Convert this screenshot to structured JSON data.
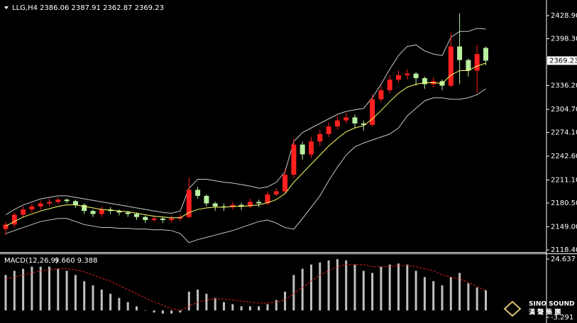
{
  "chart_data": [
    {
      "type": "candlestick",
      "title": "LLG,H4",
      "ohlc_text": "2386.06 2387.91 2362.87 2369.23",
      "open": [
        2146,
        2152,
        2165,
        2172,
        2176,
        2180,
        2182,
        2185,
        2183,
        2178,
        2170,
        2166,
        2172,
        2170,
        2168,
        2166,
        2162,
        2158,
        2160,
        2158,
        2160,
        2162,
        2198,
        2190,
        2180,
        2176,
        2175,
        2178,
        2176,
        2182,
        2180,
        2192,
        2196,
        2218,
        2258,
        2245,
        2262,
        2272,
        2282,
        2290,
        2294,
        2286,
        2284,
        2318,
        2330,
        2344,
        2350,
        2352,
        2346,
        2338,
        2342,
        2336,
        2388,
        2370,
        2356,
        2386.06
      ],
      "high": [
        2156,
        2168,
        2176,
        2180,
        2184,
        2186,
        2188,
        2187,
        2185,
        2180,
        2172,
        2176,
        2175,
        2172,
        2170,
        2168,
        2164,
        2164,
        2162,
        2164,
        2166,
        2214,
        2202,
        2192,
        2182,
        2180,
        2182,
        2181,
        2186,
        2185,
        2196,
        2200,
        2226,
        2266,
        2262,
        2268,
        2278,
        2287,
        2296,
        2300,
        2298,
        2290,
        2324,
        2336,
        2350,
        2356,
        2358,
        2354,
        2348,
        2347,
        2344,
        2406,
        2432,
        2372,
        2390,
        2387.91
      ],
      "low": [
        2138,
        2148,
        2161,
        2168,
        2172,
        2176,
        2179,
        2180,
        2174,
        2166,
        2162,
        2162,
        2166,
        2164,
        2162,
        2158,
        2154,
        2156,
        2154,
        2155,
        2156,
        2160,
        2186,
        2176,
        2170,
        2170,
        2172,
        2171,
        2174,
        2175,
        2178,
        2190,
        2194,
        2214,
        2238,
        2240,
        2256,
        2268,
        2278,
        2286,
        2280,
        2276,
        2282,
        2314,
        2326,
        2340,
        2344,
        2336,
        2332,
        2334,
        2330,
        2334,
        2338,
        2348,
        2326,
        2362.87
      ],
      "close": [
        2152,
        2165,
        2172,
        2176,
        2180,
        2182,
        2185,
        2183,
        2178,
        2170,
        2166,
        2172,
        2170,
        2168,
        2166,
        2162,
        2158,
        2160,
        2158,
        2160,
        2162,
        2198,
        2190,
        2180,
        2176,
        2175,
        2178,
        2176,
        2182,
        2180,
        2192,
        2196,
        2218,
        2258,
        2245,
        2262,
        2272,
        2282,
        2290,
        2294,
        2286,
        2284,
        2318,
        2330,
        2344,
        2350,
        2352,
        2346,
        2338,
        2342,
        2336,
        2388,
        2370,
        2356,
        2378,
        2369.23
      ],
      "upper_band": [
        2165,
        2172,
        2178,
        2182,
        2186,
        2188,
        2190,
        2190,
        2188,
        2186,
        2184,
        2182,
        2180,
        2178,
        2176,
        2174,
        2172,
        2170,
        2168,
        2167,
        2170,
        2200,
        2212,
        2212,
        2210,
        2208,
        2207,
        2205,
        2203,
        2200,
        2202,
        2208,
        2222,
        2262,
        2274,
        2280,
        2286,
        2292,
        2298,
        2302,
        2304,
        2306,
        2320,
        2338,
        2358,
        2376,
        2388,
        2390,
        2382,
        2378,
        2376,
        2400,
        2408,
        2408,
        2412,
        2411
      ],
      "lower_band": [
        2140,
        2144,
        2148,
        2152,
        2156,
        2158,
        2160,
        2160,
        2156,
        2152,
        2150,
        2148,
        2148,
        2147,
        2147,
        2146,
        2146,
        2145,
        2145,
        2144,
        2140,
        2128,
        2132,
        2135,
        2138,
        2141,
        2144,
        2148,
        2152,
        2156,
        2158,
        2154,
        2148,
        2146,
        2160,
        2175,
        2190,
        2210,
        2228,
        2244,
        2255,
        2260,
        2264,
        2268,
        2272,
        2280,
        2296,
        2306,
        2316,
        2320,
        2320,
        2318,
        2318,
        2320,
        2324,
        2332
      ],
      "ma": [
        2150,
        2156,
        2162,
        2166,
        2170,
        2173,
        2176,
        2178,
        2178,
        2176,
        2174,
        2172,
        2171,
        2170,
        2169,
        2167,
        2165,
        2163,
        2162,
        2161,
        2161,
        2168,
        2172,
        2174,
        2175,
        2175,
        2176,
        2176,
        2177,
        2178,
        2181,
        2185,
        2193,
        2208,
        2220,
        2232,
        2244,
        2256,
        2266,
        2275,
        2280,
        2283,
        2292,
        2303,
        2315,
        2326,
        2334,
        2338,
        2340,
        2340,
        2339,
        2350,
        2356,
        2356,
        2362,
        2366
      ],
      "up_color": "#ff2020",
      "down_color": "#b8f0a0",
      "band_color": "#c8c8c8",
      "ma_color": "#ffff66",
      "current_price": 2369.23,
      "ylim": [
        2115.6,
        2447.7
      ],
      "yticks": [
        {
          "value": 2428.9,
          "label": "2428.90"
        },
        {
          "value": 2398.3,
          "label": "2398.30"
        },
        {
          "value": 2336.2,
          "label": "2336.20"
        },
        {
          "value": 2304.7,
          "label": "2304.70"
        },
        {
          "value": 2274.1,
          "label": "2274.10"
        },
        {
          "value": 2242.6,
          "label": "2242.60"
        },
        {
          "value": 2211.1,
          "label": "2211.10"
        },
        {
          "value": 2180.5,
          "label": "2180.50"
        },
        {
          "value": 2149,
          "label": "2149.00"
        },
        {
          "value": 2118.4,
          "label": "2118.40"
        }
      ]
    },
    {
      "type": "macd",
      "title": "MACD(12,26,9)",
      "values_text": "9.660 9.388",
      "histogram": [
        17,
        19,
        20,
        21,
        21,
        21,
        20,
        19,
        17,
        14,
        12,
        10,
        8,
        6,
        4,
        2,
        0,
        -1,
        -1.5,
        -1.5,
        -1,
        9,
        10,
        8,
        6,
        4,
        3,
        2,
        2,
        2,
        3,
        5,
        9,
        17,
        20,
        22,
        23,
        24,
        24.6,
        24,
        22,
        19,
        18,
        21,
        22,
        22.5,
        22,
        19,
        16,
        14,
        12,
        16,
        18,
        13,
        11,
        9.66
      ],
      "signal": [
        15,
        16,
        17,
        18,
        19,
        19.5,
        20,
        20,
        19.5,
        18.5,
        17,
        15.5,
        14,
        12,
        10,
        8,
        6,
        4,
        2.5,
        1,
        0,
        2,
        4,
        5,
        5.5,
        5.5,
        5,
        4.5,
        4,
        3.5,
        3.5,
        4,
        5,
        8,
        11,
        14,
        17,
        19,
        21,
        22,
        22,
        22,
        21,
        21,
        21,
        21.5,
        21.5,
        21,
        20,
        19,
        17,
        16,
        15,
        13.5,
        11.5,
        9.388
      ],
      "hist_color": "#c0c0c0",
      "signal_color": "#e02020",
      "ylim": [
        -5,
        27
      ],
      "yticks": [
        24.637,
        -3.291
      ]
    }
  ],
  "watermark": {
    "brand": "SINO SOUND",
    "chinese": "漢 聲 集 團"
  }
}
